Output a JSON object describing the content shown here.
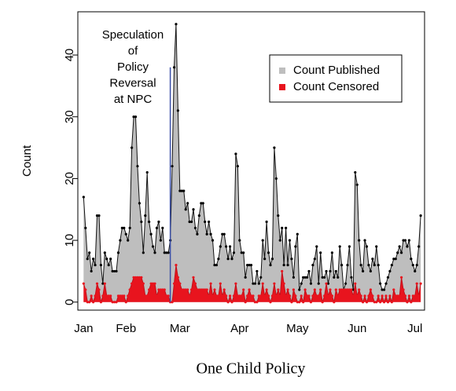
{
  "chart_data": {
    "type": "area",
    "title": "One Child Policy",
    "ylabel": "Count",
    "x": [
      9,
      10,
      11,
      12,
      13,
      14,
      15,
      16,
      17,
      18,
      19,
      20,
      21,
      22,
      23,
      24,
      25,
      26,
      27,
      28,
      29,
      30,
      31,
      32,
      33,
      34,
      35,
      36,
      37,
      38,
      39,
      40,
      41,
      42,
      43,
      44,
      45,
      46,
      47,
      48,
      49,
      50,
      51,
      52,
      53,
      54,
      55,
      56,
      57,
      58,
      59,
      60,
      61,
      62,
      63,
      64,
      65,
      66,
      67,
      68,
      69,
      70,
      71,
      72,
      73,
      74,
      75,
      76,
      77,
      78,
      79,
      80,
      81,
      82,
      83,
      84,
      85,
      86,
      87,
      88,
      89,
      90,
      91,
      92,
      93,
      94,
      95,
      96,
      97,
      98,
      99,
      100,
      101,
      102,
      103,
      104,
      105,
      106,
      107,
      108,
      109,
      110,
      111,
      112,
      113,
      114,
      115,
      116,
      117,
      118,
      119,
      120,
      121,
      122,
      123,
      124,
      125,
      126,
      127,
      128,
      129,
      130,
      131,
      132,
      133,
      134,
      135,
      136,
      137,
      138,
      139,
      140,
      141,
      142,
      143,
      144,
      145,
      146,
      147,
      148,
      149,
      150,
      151,
      152,
      153,
      154,
      155,
      156,
      157,
      158,
      159,
      160,
      161,
      162,
      163,
      164,
      165,
      166,
      167,
      168,
      169,
      170,
      171,
      172,
      173,
      174,
      175,
      176,
      177,
      178,
      179,
      180,
      181,
      182,
      183,
      184
    ],
    "series": [
      {
        "name": "Count Published",
        "color": "#bebebe",
        "line_color": "#111111",
        "values": [
          17,
          12,
          7,
          8,
          5,
          7,
          6,
          14,
          14,
          6,
          3,
          8,
          7,
          6,
          7,
          5,
          5,
          5,
          8,
          10,
          12,
          12,
          11,
          10,
          12,
          25,
          30,
          30,
          22,
          16,
          13,
          8,
          14,
          21,
          13,
          11,
          9,
          8,
          12,
          13,
          10,
          12,
          8,
          8,
          8,
          10,
          22,
          38,
          45,
          31,
          18,
          18,
          18,
          15,
          16,
          13,
          13,
          15,
          12,
          11,
          14,
          16,
          16,
          13,
          11,
          13,
          11,
          10,
          6,
          6,
          7,
          9,
          11,
          11,
          9,
          7,
          9,
          7,
          8,
          24,
          22,
          10,
          8,
          8,
          4,
          6,
          6,
          6,
          3,
          3,
          5,
          3,
          4,
          10,
          7,
          13,
          8,
          6,
          7,
          25,
          20,
          14,
          10,
          12,
          6,
          12,
          6,
          10,
          7,
          4,
          9,
          11,
          2,
          3,
          4,
          4,
          4,
          5,
          3,
          6,
          7,
          9,
          3,
          8,
          4,
          4,
          5,
          3,
          5,
          8,
          4,
          5,
          4,
          9,
          6,
          2,
          3,
          6,
          9,
          4,
          2,
          21,
          19,
          10,
          6,
          5,
          10,
          9,
          6,
          5,
          7,
          6,
          9,
          6,
          3,
          2,
          2,
          3,
          4,
          5,
          6,
          7,
          7,
          8,
          9,
          8,
          10,
          10,
          9,
          10,
          7,
          6,
          5,
          6,
          9,
          14
        ]
      },
      {
        "name": "Count Censored",
        "color": "#e8141e",
        "line_color": "#c0101a",
        "values": [
          3,
          2,
          0,
          0,
          1,
          0,
          1,
          3,
          2,
          0,
          1,
          3,
          1,
          1,
          1,
          0,
          0,
          0,
          1,
          1,
          1,
          1,
          0,
          1,
          2,
          3,
          4,
          4,
          4,
          4,
          4,
          3,
          1,
          1,
          2,
          3,
          3,
          3,
          1,
          2,
          2,
          2,
          2,
          1,
          1,
          0,
          0,
          3,
          6,
          4,
          3,
          2,
          2,
          2,
          2,
          1,
          2,
          4,
          3,
          2,
          2,
          2,
          2,
          2,
          2,
          1,
          3,
          1,
          2,
          1,
          1,
          3,
          1,
          2,
          1,
          0,
          1,
          0,
          1,
          3,
          1,
          1,
          1,
          2,
          0,
          1,
          2,
          1,
          1,
          0,
          0,
          1,
          1,
          3,
          1,
          2,
          1,
          0,
          1,
          3,
          1,
          2,
          1,
          5,
          3,
          1,
          2,
          1,
          0,
          2,
          1,
          0,
          0,
          1,
          0,
          2,
          1,
          1,
          0,
          1,
          2,
          1,
          1,
          2,
          0,
          1,
          3,
          1,
          2,
          1,
          0,
          2,
          1,
          2,
          2,
          2,
          2,
          2,
          2,
          2,
          1,
          3,
          1,
          2,
          1,
          0,
          1,
          0,
          1,
          2,
          1,
          0,
          0,
          1,
          0,
          1,
          0,
          1,
          0,
          1,
          0,
          2,
          1,
          1,
          1,
          4,
          2,
          1,
          0,
          1,
          0,
          1,
          1,
          3,
          1,
          3
        ]
      }
    ],
    "xlim": [
      6,
      186
    ],
    "xticks": [
      {
        "value": 9,
        "label": "Jan"
      },
      {
        "value": 31,
        "label": "Feb"
      },
      {
        "value": 59,
        "label": "Mar"
      },
      {
        "value": 90,
        "label": "Apr"
      },
      {
        "value": 120,
        "label": "May"
      },
      {
        "value": 151,
        "label": "Jun"
      },
      {
        "value": 181,
        "label": "Jul"
      }
    ],
    "ylim": [
      -1.3,
      47
    ],
    "yticks": [
      0,
      10,
      20,
      30,
      40
    ],
    "legend": "topright",
    "annotation": {
      "text": [
        "Speculation",
        "of",
        "Policy",
        "Reversal",
        "at NPC"
      ],
      "x": 54,
      "ymax": 38,
      "color": "#3a4fa8"
    }
  }
}
